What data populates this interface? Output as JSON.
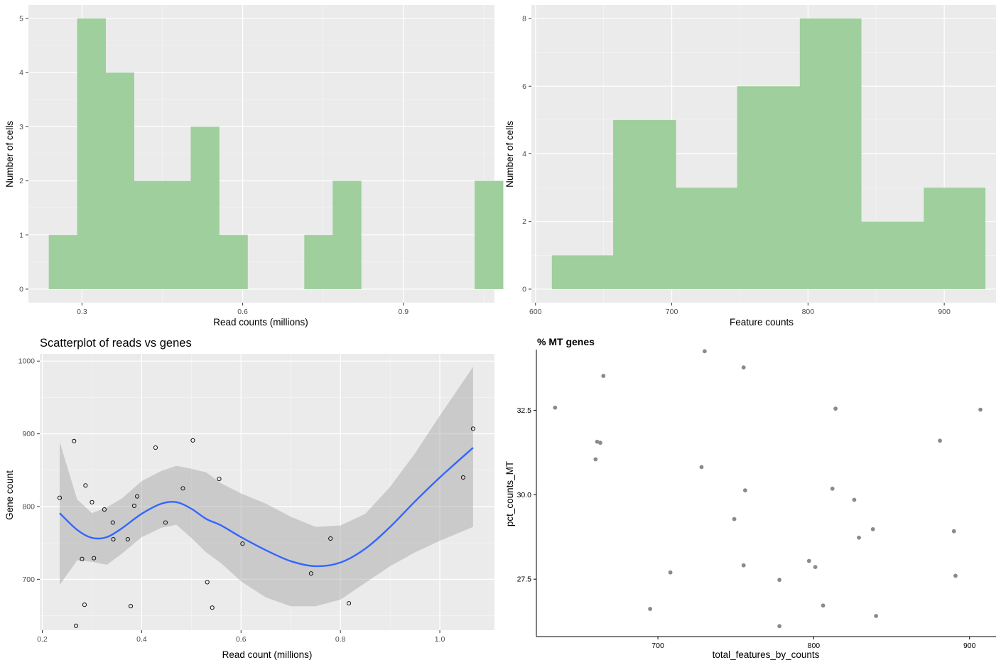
{
  "chart_data": [
    {
      "type": "bar",
      "subtype": "histogram",
      "title": "",
      "xlabel": "Read counts (millions)",
      "ylabel": "Number of cells",
      "xlim": [
        0.2,
        1.07
      ],
      "ylim": [
        -0.25,
        5.25
      ],
      "xticks": [
        0.3,
        0.6,
        0.9
      ],
      "yticks": [
        0,
        1,
        2,
        3,
        4,
        5
      ],
      "bin_edges": [
        0.238,
        0.291,
        0.344,
        0.397,
        0.45,
        0.503,
        0.556,
        0.609,
        0.662,
        0.715,
        0.768,
        0.821,
        0.874,
        0.927,
        0.98,
        1.033,
        1.086
      ],
      "values": [
        1,
        5,
        4,
        2,
        2,
        3,
        1,
        0,
        0,
        1,
        2,
        0,
        0,
        0,
        0,
        2
      ],
      "color": "#9ecf9c",
      "grid": true
    },
    {
      "type": "bar",
      "subtype": "histogram",
      "title": "",
      "xlabel": "Feature counts",
      "ylabel": "Number of cells",
      "xlim": [
        597,
        938
      ],
      "ylim": [
        -0.4,
        8.4
      ],
      "xticks": [
        600,
        700,
        800,
        900
      ],
      "yticks": [
        0,
        2,
        4,
        6,
        8
      ],
      "bin_edges": [
        612,
        657,
        703,
        748,
        794,
        839,
        885,
        930
      ],
      "values": [
        1,
        5,
        3,
        6,
        8,
        2,
        3
      ],
      "color": "#9ecf9c",
      "grid": true
    },
    {
      "type": "scatter",
      "title": "Scatterplot of reads vs genes",
      "xlabel": "Read count (millions)",
      "ylabel": "Gene count",
      "xlim": [
        0.195,
        1.11
      ],
      "ylim": [
        630,
        1010
      ],
      "xticks": [
        0.2,
        0.4,
        0.6,
        0.8,
        1.0
      ],
      "yticks": [
        700,
        800,
        900,
        1000
      ],
      "grid": true,
      "points": [
        {
          "x": 0.235,
          "y": 812
        },
        {
          "x": 0.264,
          "y": 890
        },
        {
          "x": 0.268,
          "y": 636
        },
        {
          "x": 0.28,
          "y": 728
        },
        {
          "x": 0.285,
          "y": 665
        },
        {
          "x": 0.287,
          "y": 829
        },
        {
          "x": 0.3,
          "y": 806
        },
        {
          "x": 0.304,
          "y": 729
        },
        {
          "x": 0.325,
          "y": 796
        },
        {
          "x": 0.342,
          "y": 778
        },
        {
          "x": 0.343,
          "y": 755
        },
        {
          "x": 0.372,
          "y": 755
        },
        {
          "x": 0.378,
          "y": 663
        },
        {
          "x": 0.385,
          "y": 801
        },
        {
          "x": 0.391,
          "y": 814
        },
        {
          "x": 0.428,
          "y": 881
        },
        {
          "x": 0.448,
          "y": 778
        },
        {
          "x": 0.483,
          "y": 825
        },
        {
          "x": 0.503,
          "y": 891
        },
        {
          "x": 0.532,
          "y": 696
        },
        {
          "x": 0.542,
          "y": 661
        },
        {
          "x": 0.556,
          "y": 838
        },
        {
          "x": 0.603,
          "y": 749
        },
        {
          "x": 0.741,
          "y": 708
        },
        {
          "x": 0.78,
          "y": 756
        },
        {
          "x": 0.817,
          "y": 667
        },
        {
          "x": 1.047,
          "y": 840
        },
        {
          "x": 1.067,
          "y": 907
        }
      ],
      "smooth": {
        "color": "#3366ff",
        "x": [
          0.235,
          0.27,
          0.3,
          0.33,
          0.36,
          0.4,
          0.44,
          0.47,
          0.5,
          0.53,
          0.56,
          0.6,
          0.65,
          0.7,
          0.75,
          0.8,
          0.85,
          0.9,
          0.95,
          1.0,
          1.067
        ],
        "y": [
          791,
          768,
          757,
          758,
          770,
          790,
          804,
          806,
          797,
          783,
          774,
          758,
          740,
          725,
          718,
          723,
          742,
          772,
          807,
          840,
          881
        ],
        "lower": [
          692,
          726,
          724,
          720,
          735,
          758,
          771,
          775,
          757,
          737,
          722,
          697,
          675,
          663,
          663,
          672,
          695,
          718,
          737,
          753,
          772
        ],
        "upper": [
          889,
          810,
          791,
          799,
          811,
          835,
          849,
          856,
          852,
          847,
          832,
          818,
          804,
          786,
          772,
          774,
          790,
          827,
          873,
          925,
          992
        ]
      }
    },
    {
      "type": "scatter",
      "title": "% MT genes",
      "xlabel": "total_features_by_counts",
      "ylabel": "pct_counts_MT",
      "xlim": [
        622,
        917
      ],
      "ylim": [
        25.8,
        34.3
      ],
      "xticks": [
        700,
        800,
        900
      ],
      "yticks": [
        27.5,
        30.0,
        32.5
      ],
      "grid": false,
      "points": [
        {
          "x": 634,
          "y": 32.58
        },
        {
          "x": 660,
          "y": 31.05
        },
        {
          "x": 661,
          "y": 31.57
        },
        {
          "x": 663,
          "y": 31.54
        },
        {
          "x": 665,
          "y": 33.52
        },
        {
          "x": 695,
          "y": 26.62
        },
        {
          "x": 708,
          "y": 27.7
        },
        {
          "x": 728,
          "y": 30.82
        },
        {
          "x": 730,
          "y": 34.25
        },
        {
          "x": 749,
          "y": 29.28
        },
        {
          "x": 755,
          "y": 33.77
        },
        {
          "x": 755,
          "y": 27.91
        },
        {
          "x": 756,
          "y": 30.13
        },
        {
          "x": 778,
          "y": 27.48
        },
        {
          "x": 778,
          "y": 26.11
        },
        {
          "x": 797,
          "y": 28.04
        },
        {
          "x": 801,
          "y": 27.86
        },
        {
          "x": 806,
          "y": 26.72
        },
        {
          "x": 812,
          "y": 30.18
        },
        {
          "x": 814,
          "y": 32.55
        },
        {
          "x": 826,
          "y": 29.85
        },
        {
          "x": 829,
          "y": 28.73
        },
        {
          "x": 838,
          "y": 28.98
        },
        {
          "x": 840,
          "y": 26.41
        },
        {
          "x": 881,
          "y": 31.6
        },
        {
          "x": 890,
          "y": 28.92
        },
        {
          "x": 891,
          "y": 27.6
        },
        {
          "x": 907,
          "y": 32.52
        }
      ],
      "point_color": "#8a8a8a"
    }
  ]
}
